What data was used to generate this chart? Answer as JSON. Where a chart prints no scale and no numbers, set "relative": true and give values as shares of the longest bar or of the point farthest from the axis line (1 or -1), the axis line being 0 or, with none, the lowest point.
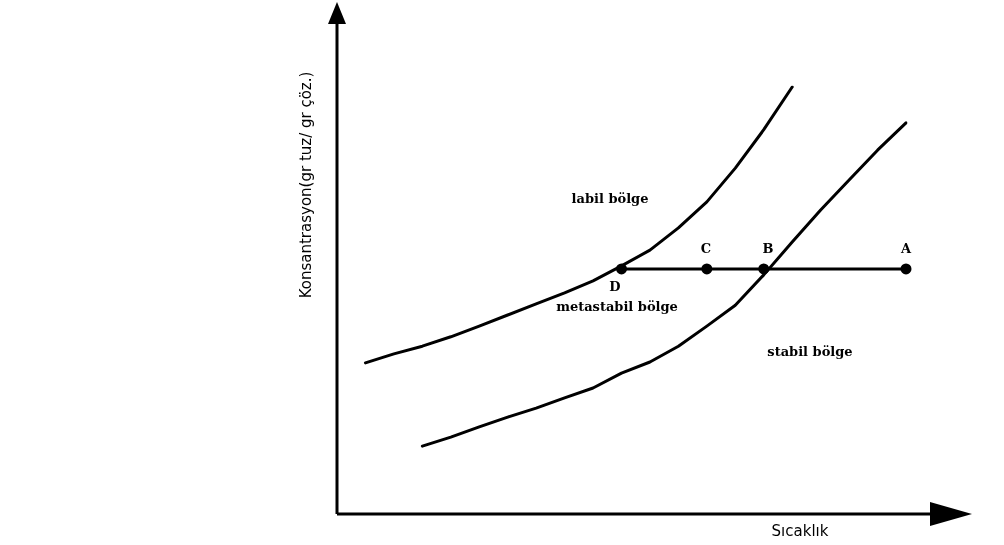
{
  "chart_data": {
    "type": "line",
    "relative": true,
    "xlabel": "Sıcaklık",
    "ylabel": "Konsantrasyon(gr tuz/ gr çöz.)",
    "tick_labels": false,
    "grid": false,
    "legend": false,
    "line_style": "solid",
    "categories": [
      null,
      null,
      null,
      null,
      null,
      null,
      null,
      null,
      null,
      null,
      null,
      null,
      null,
      null,
      null,
      null,
      null,
      null,
      null,
      null,
      null
    ],
    "series": [
      {
        "color": "#000000",
        "marker": "none",
        "values": [
          null,
          0.354,
          0.375,
          0.393,
          0.415,
          0.44,
          0.466,
          0.492,
          0.518,
          0.546,
          0.581,
          0.618,
          0.67,
          0.731,
          0.81,
          0.9,
          1,
          null,
          null,
          null,
          null
        ]
      },
      {
        "color": "#000000",
        "marker": "none",
        "values": [
          null,
          null,
          null,
          0.159,
          0.18,
          0.204,
          0.227,
          0.248,
          0.272,
          0.295,
          0.33,
          0.356,
          0.393,
          0.44,
          0.489,
          0.56,
          0.637,
          0.712,
          0.782,
          0.852,
          0.916
        ]
      },
      {
        "color": "#000000",
        "marker": "circle",
        "values": [
          null,
          null,
          null,
          null,
          null,
          null,
          null,
          null,
          null,
          null,
          0.574,
          null,
          null,
          0.574,
          null,
          0.574,
          null,
          null,
          null,
          null,
          0.574
        ]
      }
    ],
    "annotations": [
      "D",
      "C",
      "B",
      "A",
      "labil bölge",
      "metastabil bölge",
      "stabil bölge"
    ]
  }
}
